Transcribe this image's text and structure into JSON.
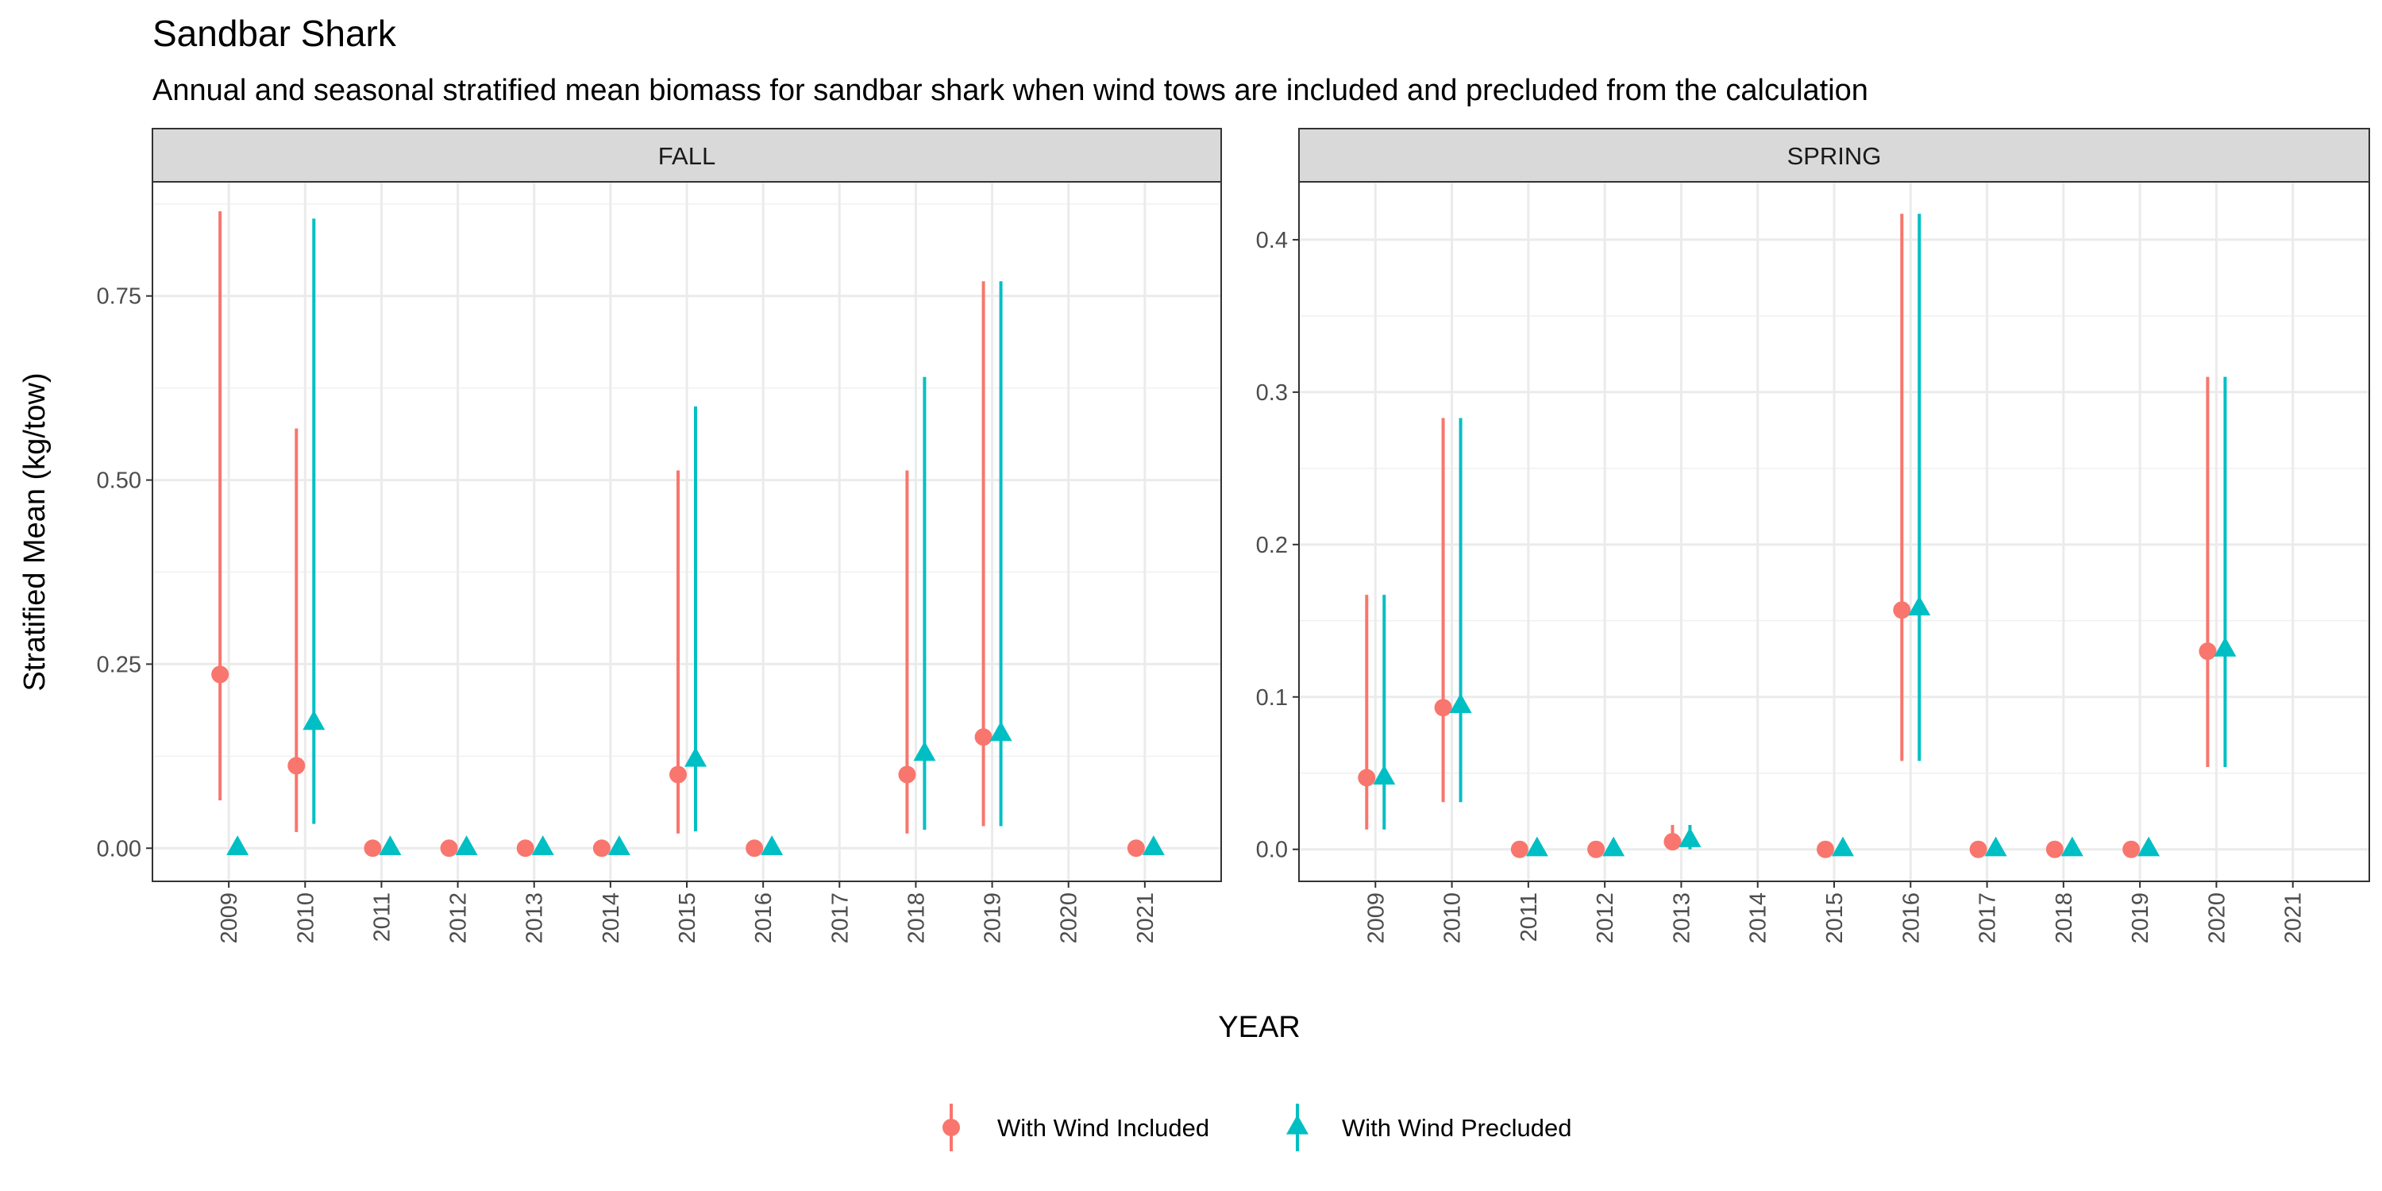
{
  "chart_data": {
    "type": "scatter",
    "title": "Sandbar Shark",
    "subtitle": "Annual and seasonal stratified mean biomass for sandbar shark when wind tows are included and precluded from the calculation",
    "xlabel": "YEAR",
    "ylabel": "Stratified Mean (kg/tow)",
    "legend_position": "bottom",
    "series_styles": [
      {
        "name": "With Wind Included",
        "color": "#F8766D",
        "shape": "circle"
      },
      {
        "name": "With Wind Precluded",
        "color": "#00BFC4",
        "shape": "triangle"
      }
    ],
    "panels": [
      {
        "name": "FALL",
        "categories": [
          "2009",
          "2010",
          "2011",
          "2012",
          "2013",
          "2014",
          "2015",
          "2016",
          "2017",
          "2018",
          "2019",
          "2020",
          "2021"
        ],
        "ylim": [
          -0.045,
          0.905
        ],
        "yticks": [
          0,
          0.25,
          0.5,
          0.75
        ],
        "yticklabels": [
          "0.00",
          "0.25",
          "0.50",
          "0.75"
        ],
        "series": [
          {
            "name": "With Wind Included",
            "points": [
              {
                "year": "2009",
                "mean": 0.236,
                "lower": 0.065,
                "upper": 0.865
              },
              {
                "year": "2010",
                "mean": 0.112,
                "lower": 0.022,
                "upper": 0.57
              },
              {
                "year": "2011",
                "mean": 0.0
              },
              {
                "year": "2012",
                "mean": 0.0
              },
              {
                "year": "2013",
                "mean": 0.0
              },
              {
                "year": "2014",
                "mean": 0.0
              },
              {
                "year": "2015",
                "mean": 0.1,
                "lower": 0.02,
                "upper": 0.513
              },
              {
                "year": "2016",
                "mean": 0.0
              },
              {
                "year": "2018",
                "mean": 0.1,
                "lower": 0.02,
                "upper": 0.513
              },
              {
                "year": "2019",
                "mean": 0.151,
                "lower": 0.03,
                "upper": 0.77
              },
              {
                "year": "2021",
                "mean": 0.0
              }
            ]
          },
          {
            "name": "With Wind Precluded",
            "points": [
              {
                "year": "2009",
                "mean": 0.0
              },
              {
                "year": "2010",
                "mean": 0.17,
                "lower": 0.033,
                "upper": 0.855
              },
              {
                "year": "2011",
                "mean": 0.0
              },
              {
                "year": "2012",
                "mean": 0.0
              },
              {
                "year": "2013",
                "mean": 0.0
              },
              {
                "year": "2014",
                "mean": 0.0
              },
              {
                "year": "2015",
                "mean": 0.12,
                "lower": 0.023,
                "upper": 0.6
              },
              {
                "year": "2016",
                "mean": 0.0
              },
              {
                "year": "2018",
                "mean": 0.128,
                "lower": 0.025,
                "upper": 0.64
              },
              {
                "year": "2019",
                "mean": 0.155,
                "lower": 0.03,
                "upper": 0.77
              },
              {
                "year": "2021",
                "mean": 0.0
              }
            ]
          }
        ]
      },
      {
        "name": "SPRING",
        "categories": [
          "2009",
          "2010",
          "2011",
          "2012",
          "2013",
          "2014",
          "2015",
          "2016",
          "2017",
          "2018",
          "2019",
          "2020",
          "2021"
        ],
        "ylim": [
          -0.021,
          0.438
        ],
        "yticks": [
          0,
          0.1,
          0.2,
          0.3,
          0.4
        ],
        "yticklabels": [
          "0.0",
          "0.1",
          "0.2",
          "0.3",
          "0.4"
        ],
        "series": [
          {
            "name": "With Wind Included",
            "points": [
              {
                "year": "2009",
                "mean": 0.047,
                "lower": 0.013,
                "upper": 0.167
              },
              {
                "year": "2010",
                "mean": 0.093,
                "lower": 0.031,
                "upper": 0.283
              },
              {
                "year": "2011",
                "mean": 0.0
              },
              {
                "year": "2012",
                "mean": 0.0
              },
              {
                "year": "2013",
                "mean": 0.005,
                "lower": 0.0,
                "upper": 0.016
              },
              {
                "year": "2015",
                "mean": 0.0
              },
              {
                "year": "2016",
                "mean": 0.157,
                "lower": 0.058,
                "upper": 0.417
              },
              {
                "year": "2017",
                "mean": 0.0
              },
              {
                "year": "2018",
                "mean": 0.0
              },
              {
                "year": "2019",
                "mean": 0.0
              },
              {
                "year": "2020",
                "mean": 0.13,
                "lower": 0.054,
                "upper": 0.31
              }
            ]
          },
          {
            "name": "With Wind Precluded",
            "points": [
              {
                "year": "2009",
                "mean": 0.047,
                "lower": 0.013,
                "upper": 0.167
              },
              {
                "year": "2010",
                "mean": 0.094,
                "lower": 0.031,
                "upper": 0.283
              },
              {
                "year": "2011",
                "mean": 0.0
              },
              {
                "year": "2012",
                "mean": 0.0
              },
              {
                "year": "2013",
                "mean": 0.006,
                "lower": 0.0,
                "upper": 0.016
              },
              {
                "year": "2015",
                "mean": 0.0
              },
              {
                "year": "2016",
                "mean": 0.158,
                "lower": 0.058,
                "upper": 0.417
              },
              {
                "year": "2017",
                "mean": 0.0
              },
              {
                "year": "2018",
                "mean": 0.0
              },
              {
                "year": "2019",
                "mean": 0.0
              },
              {
                "year": "2020",
                "mean": 0.131,
                "lower": 0.054,
                "upper": 0.31
              }
            ]
          }
        ]
      }
    ]
  }
}
